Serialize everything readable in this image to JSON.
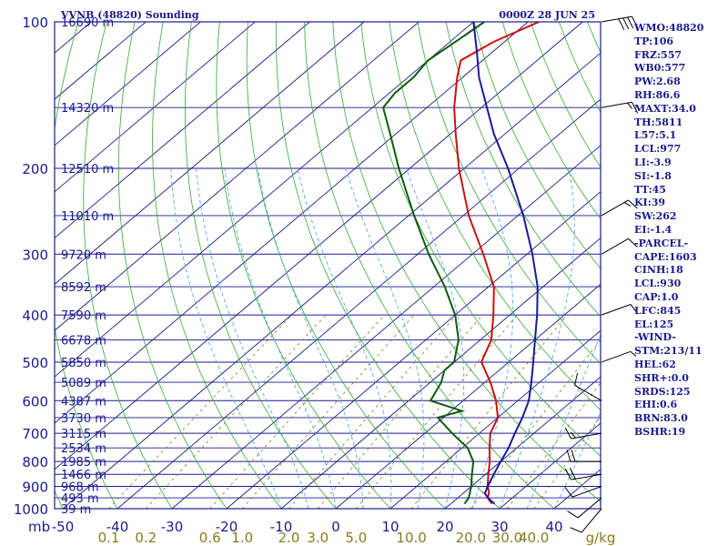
{
  "header": {
    "station": "VVNB (48820) Sounding",
    "time": "0000Z 28 JUN 25"
  },
  "chart_data": {
    "type": "skew-t",
    "y_scale": "log-pressure",
    "pressure_range_mb": [
      1000,
      100
    ],
    "pressure_unit_label": "mb",
    "pressure_ticks": [
      100,
      200,
      300,
      400,
      500,
      600,
      700,
      800,
      900,
      1000
    ],
    "temperature_ticks": [
      -50,
      -40,
      -30,
      -20,
      -10,
      0,
      10,
      20,
      30,
      40
    ],
    "mixing_ratio_ticks": [
      "0.1",
      "0.2",
      "0.6",
      "1.0",
      "2.0",
      "3.0",
      "5.0",
      "10.0",
      "20.0",
      "30.0",
      "40.0"
    ],
    "mixing_ratio_unit": "g/kg",
    "height_labels": [
      {
        "p": 100,
        "text": "16690 m"
      },
      {
        "p": 150,
        "text": "14320 m"
      },
      {
        "p": 200,
        "text": "12510 m"
      },
      {
        "p": 250,
        "text": "11010 m"
      },
      {
        "p": 300,
        "text": "9720 m"
      },
      {
        "p": 350,
        "text": "8592 m"
      },
      {
        "p": 400,
        "text": "7590 m"
      },
      {
        "p": 450,
        "text": "6678 m"
      },
      {
        "p": 500,
        "text": "5850 m"
      },
      {
        "p": 550,
        "text": "5089 m"
      },
      {
        "p": 600,
        "text": "4387 m"
      },
      {
        "p": 650,
        "text": "3730 m"
      },
      {
        "p": 700,
        "text": "3115 m"
      },
      {
        "p": 750,
        "text": "2534 m"
      },
      {
        "p": 800,
        "text": "1985 m"
      },
      {
        "p": 850,
        "text": "1466 m"
      },
      {
        "p": 900,
        "text": "968 m"
      },
      {
        "p": 950,
        "text": "493 m"
      },
      {
        "p": 1000,
        "text": "39 m"
      }
    ],
    "series": [
      {
        "key": "temperature",
        "color": "#cc1111",
        "points": [
          [
            977,
            27.5
          ],
          [
            950,
            25.5
          ],
          [
            925,
            24.5
          ],
          [
            900,
            23
          ],
          [
            850,
            20.5
          ],
          [
            800,
            18
          ],
          [
            750,
            15
          ],
          [
            700,
            12
          ],
          [
            650,
            10
          ],
          [
            600,
            6
          ],
          [
            550,
            1
          ],
          [
            500,
            -5
          ],
          [
            450,
            -8
          ],
          [
            400,
            -13
          ],
          [
            350,
            -19
          ],
          [
            300,
            -28
          ],
          [
            250,
            -39
          ],
          [
            200,
            -51
          ],
          [
            170,
            -59
          ],
          [
            150,
            -65
          ],
          [
            130,
            -71
          ],
          [
            120,
            -74
          ],
          [
            110,
            -72
          ],
          [
            100,
            -68
          ]
        ]
      },
      {
        "key": "dewpoint",
        "color": "#0d5c0d",
        "points": [
          [
            977,
            22.5
          ],
          [
            950,
            22
          ],
          [
            925,
            21
          ],
          [
            900,
            20
          ],
          [
            850,
            17.5
          ],
          [
            800,
            15
          ],
          [
            750,
            11
          ],
          [
            700,
            5
          ],
          [
            650,
            -1
          ],
          [
            630,
            2
          ],
          [
            600,
            -6
          ],
          [
            550,
            -8
          ],
          [
            520,
            -10
          ],
          [
            500,
            -10
          ],
          [
            450,
            -14
          ],
          [
            400,
            -20
          ],
          [
            350,
            -28
          ],
          [
            300,
            -38
          ],
          [
            250,
            -49
          ],
          [
            200,
            -62
          ],
          [
            170,
            -71
          ],
          [
            150,
            -78
          ],
          [
            140,
            -79
          ],
          [
            130,
            -79
          ],
          [
            120,
            -80
          ],
          [
            110,
            -79
          ],
          [
            100,
            -78
          ]
        ]
      },
      {
        "key": "parcel",
        "color": "#1a1a99",
        "points": [
          [
            977,
            28
          ],
          [
            950,
            25.5
          ],
          [
            930,
            24
          ],
          [
            900,
            23
          ],
          [
            850,
            21.5
          ],
          [
            800,
            20
          ],
          [
            750,
            18.5
          ],
          [
            700,
            16.5
          ],
          [
            650,
            14.5
          ],
          [
            600,
            12
          ],
          [
            550,
            8.5
          ],
          [
            500,
            4.5
          ],
          [
            450,
            0
          ],
          [
            400,
            -5
          ],
          [
            350,
            -11
          ],
          [
            300,
            -19
          ],
          [
            250,
            -29
          ],
          [
            200,
            -42
          ],
          [
            170,
            -52
          ],
          [
            150,
            -59
          ],
          [
            130,
            -67
          ],
          [
            115,
            -73
          ],
          [
            100,
            -80
          ]
        ]
      }
    ]
  },
  "indices": [
    "WMO:48820",
    "TP:106",
    "FRZ:557",
    "WB0:577",
    "PW:2.68",
    "RH:86.6",
    "MAXT:34.0",
    "TH:5811",
    "L57:5.1",
    "LCL:977",
    "LI:-3.9",
    "SI:-1.8",
    "TT:45",
    "KI:39",
    "SW:262",
    "EI:-1.4",
    "-PARCEL-",
    "CAPE:1603",
    "CINH:18",
    "LCL:930",
    "CAP:1.0",
    "LFC:845",
    "EL:125",
    "-WIND-",
    "STM:213/11",
    "HEL:62",
    "SHR+:0.0",
    "SRDS:125",
    "EHI:0.6",
    "BRN:83.0",
    "BSHR:19"
  ],
  "wind_barbs": [
    {
      "p": 100,
      "dir": 80,
      "spd": 40
    },
    {
      "p": 150,
      "dir": 80,
      "spd": 15
    },
    {
      "p": 250,
      "dir": 60,
      "spd": 15
    },
    {
      "p": 300,
      "dir": 60,
      "spd": 10
    },
    {
      "p": 400,
      "dir": 70,
      "spd": 10
    },
    {
      "p": 500,
      "dir": 70,
      "spd": 5
    },
    {
      "p": 600,
      "dir": 300,
      "spd": 10
    },
    {
      "p": 700,
      "dir": 260,
      "spd": 15
    },
    {
      "p": 800,
      "dir": 270,
      "spd": 20
    },
    {
      "p": 850,
      "dir": 260,
      "spd": 20
    },
    {
      "p": 900,
      "dir": 250,
      "spd": 10
    },
    {
      "p": 950,
      "dir": 230,
      "spd": 10
    },
    {
      "p": 1000,
      "dir": 220,
      "spd": 10
    }
  ]
}
